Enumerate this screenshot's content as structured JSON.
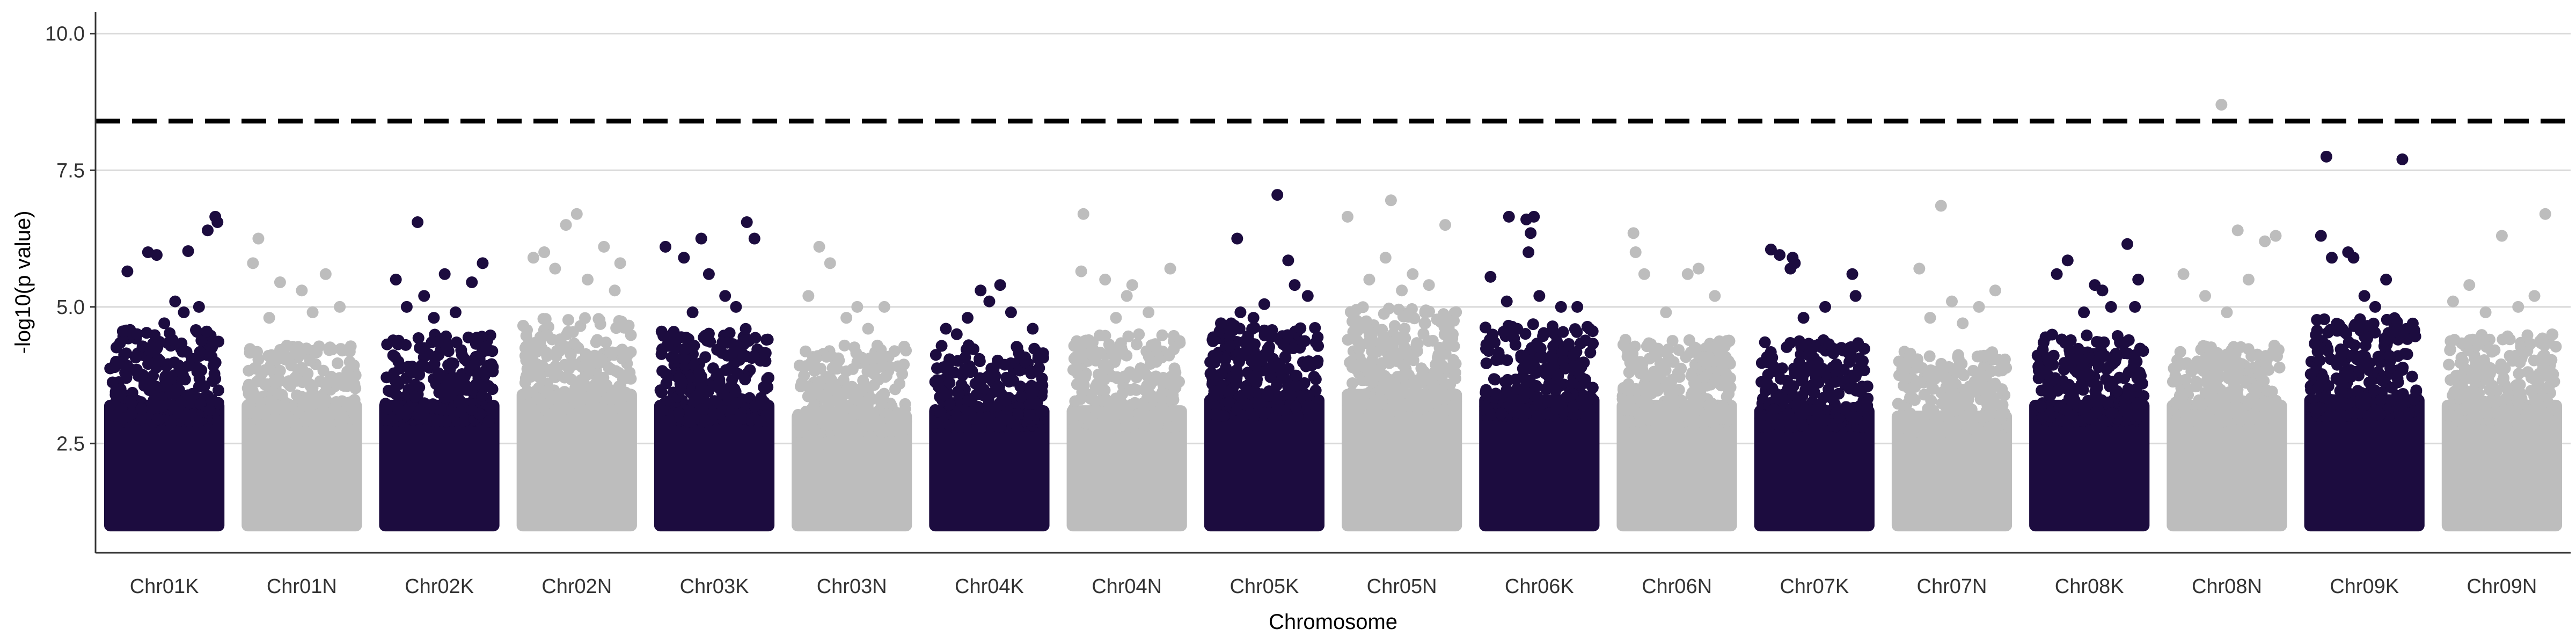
{
  "chart_data": {
    "type": "scatter",
    "title": "",
    "xlabel": "Chromosome",
    "ylabel": "-log10(p value)",
    "ylim": [
      0.5,
      10.4
    ],
    "yticks": [
      2.5,
      5.0,
      7.5,
      10.0
    ],
    "ytick_labels": [
      "2.5",
      "5.0",
      "7.5",
      "10.0"
    ],
    "grid": "horizontal-major",
    "legend": "none",
    "threshold": 8.4,
    "colors": {
      "dark": "#1c0c3f",
      "light": "#bdbdbd",
      "threshold": "#000000",
      "grid": "#d9d9d9"
    },
    "categories": [
      "Chr01K",
      "Chr01N",
      "Chr02K",
      "Chr02N",
      "Chr03K",
      "Chr03N",
      "Chr04K",
      "Chr04N",
      "Chr05K",
      "Chr05N",
      "Chr06K",
      "Chr06N",
      "Chr07K",
      "Chr07N",
      "Chr08K",
      "Chr08N",
      "Chr09K",
      "Chr09N"
    ],
    "series": [
      {
        "chromosome": "Chr01K",
        "color": "dark",
        "bulk_max": 3.3,
        "cloud_max": 4.6,
        "points": [
          [
            0.16,
            5.65
          ],
          [
            0.35,
            6.0
          ],
          [
            0.43,
            5.95
          ],
          [
            0.72,
            6.02
          ],
          [
            0.9,
            6.4
          ],
          [
            0.97,
            6.65
          ],
          [
            0.99,
            6.55
          ],
          [
            0.6,
            5.1
          ],
          [
            0.5,
            4.7
          ],
          [
            0.25,
            4.5
          ],
          [
            0.68,
            4.9
          ],
          [
            0.82,
            5.0
          ]
        ]
      },
      {
        "chromosome": "Chr01N",
        "color": "light",
        "bulk_max": 3.3,
        "cloud_max": 4.3,
        "points": [
          [
            0.1,
            6.25
          ],
          [
            0.05,
            5.8
          ],
          [
            0.3,
            5.45
          ],
          [
            0.5,
            5.3
          ],
          [
            0.72,
            5.6
          ],
          [
            0.85,
            5.0
          ],
          [
            0.6,
            4.9
          ],
          [
            0.2,
            4.8
          ]
        ]
      },
      {
        "chromosome": "Chr02K",
        "color": "dark",
        "bulk_max": 3.3,
        "cloud_max": 4.5,
        "points": [
          [
            0.1,
            5.5
          ],
          [
            0.3,
            6.55
          ],
          [
            0.36,
            5.2
          ],
          [
            0.55,
            5.6
          ],
          [
            0.8,
            5.45
          ],
          [
            0.9,
            5.8
          ],
          [
            0.65,
            4.9
          ],
          [
            0.45,
            4.8
          ],
          [
            0.2,
            5.0
          ]
        ]
      },
      {
        "chromosome": "Chr02N",
        "color": "light",
        "bulk_max": 3.5,
        "cloud_max": 4.8,
        "points": [
          [
            0.1,
            5.9
          ],
          [
            0.2,
            6.0
          ],
          [
            0.4,
            6.5
          ],
          [
            0.5,
            6.7
          ],
          [
            0.75,
            6.1
          ],
          [
            0.9,
            5.8
          ],
          [
            0.3,
            5.7
          ],
          [
            0.6,
            5.5
          ],
          [
            0.85,
            5.3
          ]
        ]
      },
      {
        "chromosome": "Chr03K",
        "color": "dark",
        "bulk_max": 3.3,
        "cloud_max": 4.6,
        "points": [
          [
            0.05,
            6.1
          ],
          [
            0.22,
            5.9
          ],
          [
            0.38,
            6.25
          ],
          [
            0.45,
            5.6
          ],
          [
            0.8,
            6.55
          ],
          [
            0.87,
            6.25
          ],
          [
            0.6,
            5.2
          ],
          [
            0.7,
            5.0
          ],
          [
            0.3,
            4.9
          ]
        ]
      },
      {
        "chromosome": "Chr03N",
        "color": "light",
        "bulk_max": 3.1,
        "cloud_max": 4.3,
        "points": [
          [
            0.1,
            5.2
          ],
          [
            0.2,
            6.1
          ],
          [
            0.3,
            5.8
          ],
          [
            0.55,
            5.0
          ],
          [
            0.8,
            5.0
          ],
          [
            0.45,
            4.8
          ],
          [
            0.65,
            4.6
          ]
        ]
      },
      {
        "chromosome": "Chr04K",
        "color": "dark",
        "bulk_max": 3.2,
        "cloud_max": 4.3,
        "points": [
          [
            0.1,
            4.6
          ],
          [
            0.3,
            4.8
          ],
          [
            0.42,
            5.3
          ],
          [
            0.5,
            5.1
          ],
          [
            0.6,
            5.4
          ],
          [
            0.7,
            4.9
          ],
          [
            0.9,
            4.6
          ],
          [
            0.2,
            4.5
          ]
        ]
      },
      {
        "chromosome": "Chr04N",
        "color": "light",
        "bulk_max": 3.2,
        "cloud_max": 4.5,
        "points": [
          [
            0.1,
            6.7
          ],
          [
            0.08,
            5.65
          ],
          [
            0.3,
            5.5
          ],
          [
            0.5,
            5.2
          ],
          [
            0.55,
            5.4
          ],
          [
            0.7,
            4.9
          ],
          [
            0.9,
            5.7
          ],
          [
            0.4,
            4.8
          ]
        ]
      },
      {
        "chromosome": "Chr05K",
        "color": "dark",
        "bulk_max": 3.4,
        "cloud_max": 4.7,
        "points": [
          [
            0.25,
            6.25
          ],
          [
            0.28,
            4.9
          ],
          [
            0.5,
            5.05
          ],
          [
            0.62,
            7.05
          ],
          [
            0.72,
            5.85
          ],
          [
            0.78,
            5.4
          ],
          [
            0.9,
            5.2
          ],
          [
            0.4,
            4.8
          ],
          [
            0.1,
            4.7
          ]
        ]
      },
      {
        "chromosome": "Chr05N",
        "color": "light",
        "bulk_max": 3.5,
        "cloud_max": 5.0,
        "points": [
          [
            0.0,
            6.65
          ],
          [
            0.2,
            5.5
          ],
          [
            0.35,
            5.9
          ],
          [
            0.4,
            6.95
          ],
          [
            0.6,
            5.6
          ],
          [
            0.75,
            5.4
          ],
          [
            0.9,
            6.5
          ],
          [
            0.5,
            5.3
          ]
        ]
      },
      {
        "chromosome": "Chr06K",
        "color": "dark",
        "bulk_max": 3.4,
        "cloud_max": 4.7,
        "points": [
          [
            0.05,
            5.55
          ],
          [
            0.22,
            6.65
          ],
          [
            0.38,
            6.6
          ],
          [
            0.42,
            6.35
          ],
          [
            0.45,
            6.65
          ],
          [
            0.4,
            6.0
          ],
          [
            0.5,
            5.2
          ],
          [
            0.7,
            5.0
          ],
          [
            0.85,
            5.0
          ],
          [
            0.2,
            5.1
          ]
        ]
      },
      {
        "chromosome": "Chr06N",
        "color": "light",
        "bulk_max": 3.3,
        "cloud_max": 4.4,
        "points": [
          [
            0.1,
            6.35
          ],
          [
            0.12,
            6.0
          ],
          [
            0.2,
            5.6
          ],
          [
            0.6,
            5.6
          ],
          [
            0.7,
            5.7
          ],
          [
            0.85,
            5.2
          ],
          [
            0.4,
            4.9
          ]
        ]
      },
      {
        "chromosome": "Chr07K",
        "color": "dark",
        "bulk_max": 3.2,
        "cloud_max": 4.4,
        "points": [
          [
            0.1,
            6.05
          ],
          [
            0.18,
            5.95
          ],
          [
            0.28,
            5.7
          ],
          [
            0.32,
            5.8
          ],
          [
            0.3,
            5.9
          ],
          [
            0.6,
            5.0
          ],
          [
            0.85,
            5.6
          ],
          [
            0.88,
            5.2
          ],
          [
            0.4,
            4.8
          ]
        ]
      },
      {
        "chromosome": "Chr07N",
        "color": "light",
        "bulk_max": 3.1,
        "cloud_max": 4.2,
        "points": [
          [
            0.2,
            5.7
          ],
          [
            0.4,
            6.85
          ],
          [
            0.5,
            5.1
          ],
          [
            0.75,
            5.0
          ],
          [
            0.9,
            5.3
          ],
          [
            0.3,
            4.8
          ],
          [
            0.6,
            4.7
          ]
        ]
      },
      {
        "chromosome": "Chr08K",
        "color": "dark",
        "bulk_max": 3.3,
        "cloud_max": 4.5,
        "points": [
          [
            0.2,
            5.6
          ],
          [
            0.3,
            5.85
          ],
          [
            0.55,
            5.4
          ],
          [
            0.62,
            5.3
          ],
          [
            0.7,
            5.0
          ],
          [
            0.85,
            6.15
          ],
          [
            0.92,
            5.0
          ],
          [
            0.95,
            5.5
          ],
          [
            0.45,
            4.9
          ]
        ]
      },
      {
        "chromosome": "Chr08N",
        "color": "light",
        "bulk_max": 3.3,
        "cloud_max": 4.3,
        "points": [
          [
            0.1,
            5.6
          ],
          [
            0.3,
            5.2
          ],
          [
            0.45,
            8.7
          ],
          [
            0.6,
            6.4
          ],
          [
            0.7,
            5.5
          ],
          [
            0.85,
            6.2
          ],
          [
            0.95,
            6.3
          ],
          [
            0.5,
            4.9
          ]
        ]
      },
      {
        "chromosome": "Chr09K",
        "color": "dark",
        "bulk_max": 3.4,
        "cloud_max": 4.8,
        "points": [
          [
            0.1,
            6.3
          ],
          [
            0.15,
            7.75
          ],
          [
            0.2,
            5.9
          ],
          [
            0.35,
            6.0
          ],
          [
            0.4,
            5.9
          ],
          [
            0.5,
            5.2
          ],
          [
            0.7,
            5.5
          ],
          [
            0.85,
            7.7
          ],
          [
            0.6,
            5.0
          ]
        ]
      },
      {
        "chromosome": "Chr09N",
        "color": "light",
        "bulk_max": 3.3,
        "cloud_max": 4.5,
        "points": [
          [
            0.05,
            5.1
          ],
          [
            0.2,
            5.4
          ],
          [
            0.5,
            6.3
          ],
          [
            0.65,
            5.0
          ],
          [
            0.8,
            5.2
          ],
          [
            0.9,
            6.7
          ],
          [
            0.35,
            4.9
          ]
        ]
      }
    ]
  }
}
